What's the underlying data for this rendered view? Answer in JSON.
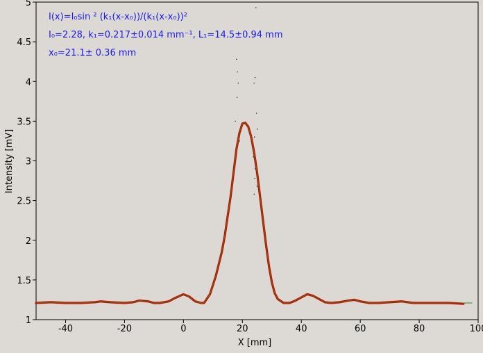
{
  "chart_data": {
    "type": "scatter",
    "title": "",
    "xlabel": "X [mm]",
    "ylabel": "Intensity [mV]",
    "xlim": [
      -50,
      100
    ],
    "ylim": [
      1,
      5
    ],
    "xticks": [
      -40,
      -20,
      0,
      20,
      40,
      60,
      80,
      100
    ],
    "xtick_labels": [
      "-40",
      "-20",
      "0",
      "20",
      "40",
      "60",
      "80",
      "100"
    ],
    "yticks": [
      1,
      1.5,
      2,
      2.5,
      3,
      3.5,
      4,
      4.5,
      5
    ],
    "ytick_labels": [
      "1",
      "1.5",
      "2",
      "2.5",
      "3",
      "3.5",
      "4",
      "4.5",
      "5"
    ],
    "grid": false,
    "annotations": {
      "formula": "I(x)=I₀sin ² (k₁(x-x₀))/(k₁(x-x₀))²",
      "params_line1": "I₀=2.28,  k₁=0.217±0.014 mm⁻¹,   L₁=14.5±0.94 mm",
      "params_line2": "x₀=21.1±   0.36 mm"
    },
    "series": [
      {
        "kind": "measured",
        "color": "#dd0000",
        "x": [
          -50,
          -45,
          -40,
          -35,
          -30,
          -28,
          -25,
          -20,
          -17,
          -15,
          -12,
          -10,
          -8,
          -5,
          -3,
          0,
          2,
          4,
          6,
          7,
          9,
          11,
          13,
          14,
          15,
          16,
          17,
          18,
          19,
          20,
          21,
          22,
          23,
          24,
          25,
          26,
          27,
          28,
          29,
          30,
          31,
          32,
          34,
          36,
          38,
          40,
          42,
          44,
          46,
          48,
          50,
          53,
          56,
          58,
          60,
          63,
          66,
          70,
          74,
          78,
          82,
          86,
          90,
          95
        ],
        "y": [
          1.21,
          1.22,
          1.21,
          1.21,
          1.22,
          1.23,
          1.22,
          1.21,
          1.22,
          1.24,
          1.23,
          1.21,
          1.21,
          1.23,
          1.27,
          1.32,
          1.29,
          1.23,
          1.21,
          1.21,
          1.32,
          1.55,
          1.85,
          2.05,
          2.3,
          2.55,
          2.85,
          3.15,
          3.35,
          3.47,
          3.48,
          3.43,
          3.3,
          3.1,
          2.85,
          2.55,
          2.25,
          1.95,
          1.68,
          1.47,
          1.33,
          1.26,
          1.21,
          1.21,
          1.24,
          1.28,
          1.32,
          1.3,
          1.26,
          1.22,
          1.21,
          1.22,
          1.24,
          1.25,
          1.23,
          1.21,
          1.21,
          1.22,
          1.23,
          1.21,
          1.21,
          1.21,
          1.21,
          1.2
        ]
      },
      {
        "kind": "fit",
        "color": "#2a8a1a",
        "x": [
          -50,
          -45,
          -40,
          -35,
          -30,
          -28,
          -25,
          -20,
          -17,
          -15,
          -12,
          -10,
          -8,
          -5,
          -3,
          0,
          2,
          4,
          6,
          7,
          9,
          11,
          13,
          14,
          15,
          16,
          17,
          18,
          19,
          20,
          21,
          22,
          23,
          24,
          25,
          26,
          27,
          28,
          29,
          30,
          31,
          32,
          34,
          36,
          38,
          40,
          42,
          44,
          46,
          48,
          50,
          53,
          56,
          58,
          60,
          63,
          66,
          70,
          74,
          78,
          82,
          86,
          90,
          95,
          98
        ],
        "y": [
          1.21,
          1.22,
          1.21,
          1.21,
          1.22,
          1.23,
          1.22,
          1.21,
          1.22,
          1.24,
          1.23,
          1.21,
          1.21,
          1.23,
          1.27,
          1.32,
          1.29,
          1.23,
          1.21,
          1.21,
          1.32,
          1.55,
          1.85,
          2.05,
          2.3,
          2.55,
          2.85,
          3.15,
          3.35,
          3.47,
          3.48,
          3.43,
          3.3,
          3.1,
          2.85,
          2.55,
          2.25,
          1.95,
          1.68,
          1.47,
          1.33,
          1.26,
          1.21,
          1.21,
          1.24,
          1.28,
          1.32,
          1.3,
          1.26,
          1.22,
          1.21,
          1.22,
          1.24,
          1.25,
          1.23,
          1.21,
          1.21,
          1.22,
          1.23,
          1.21,
          1.21,
          1.21,
          1.21,
          1.21,
          1.21
        ]
      },
      {
        "kind": "scattered-points",
        "color": "#303030",
        "x": [
          18.0,
          18.3,
          18.6,
          18.2,
          17.6,
          19.0,
          24.6,
          24.3,
          24.0,
          24.8,
          25.1,
          24.1,
          23.7,
          24.4,
          24.2,
          25.0,
          24.0
        ],
        "y": [
          4.28,
          4.12,
          3.98,
          3.8,
          3.5,
          3.25,
          4.93,
          4.05,
          3.98,
          3.6,
          3.4,
          3.3,
          3.05,
          2.9,
          2.78,
          2.68,
          2.58
        ]
      }
    ]
  }
}
